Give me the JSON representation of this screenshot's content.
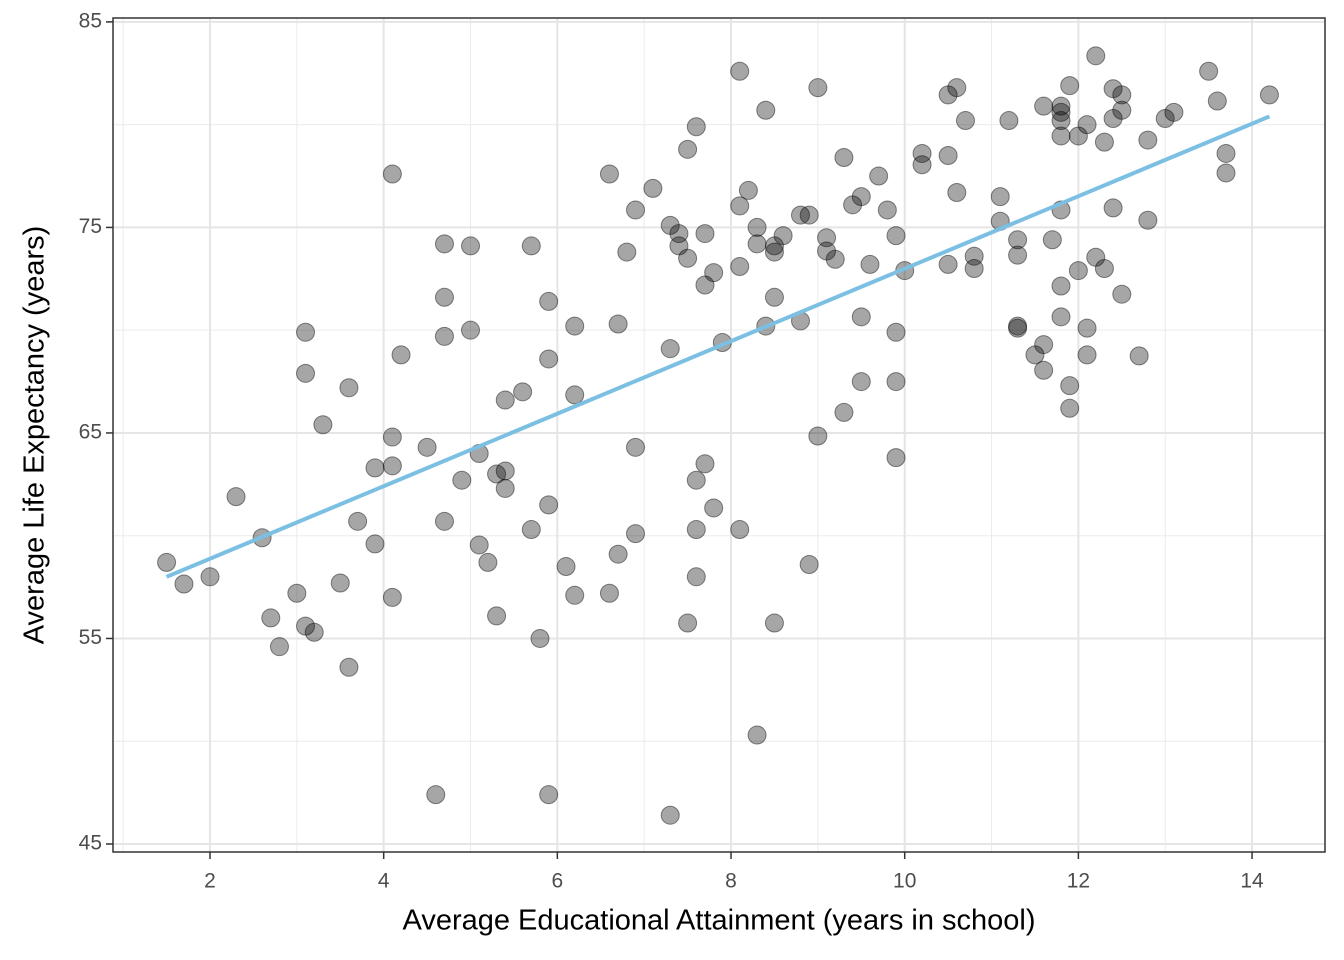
{
  "chart_data": {
    "type": "scatter",
    "x_label": "Average Educational Attainment (years in school)",
    "y_label": "Average Life Expectancy (years)",
    "xlim": [
      0.883,
      14.84
    ],
    "ylim": [
      44.61,
      85.19
    ],
    "xticks": [
      2,
      4,
      6,
      8,
      10,
      12,
      14
    ],
    "yticks": [
      45,
      55,
      65,
      75,
      85
    ],
    "x_minor_grid": [
      1,
      3,
      5,
      7,
      9,
      11,
      13
    ],
    "y_minor_grid": [
      50,
      60,
      70,
      80
    ],
    "grid": true,
    "points": {
      "color": "#000000",
      "opacity": 0.35,
      "x": [
        1.5,
        1.7,
        2.0,
        2.3,
        2.6,
        2.7,
        2.8,
        3.0,
        3.1,
        3.1,
        3.1,
        3.2,
        3.3,
        3.5,
        3.6,
        3.6,
        3.7,
        3.9,
        3.9,
        4.1,
        4.1,
        4.1,
        4.1,
        4.2,
        4.5,
        4.6,
        4.7,
        4.7,
        4.7,
        4.7,
        4.9,
        5.0,
        5.0,
        5.1,
        5.1,
        5.2,
        5.3,
        5.3,
        5.4,
        5.4,
        5.4,
        5.6,
        5.7,
        5.7,
        5.8,
        5.9,
        5.9,
        5.9,
        5.9,
        6.1,
        6.2,
        6.2,
        6.2,
        6.6,
        6.6,
        6.7,
        6.7,
        6.8,
        6.9,
        6.9,
        6.9,
        7.1,
        7.3,
        7.3,
        7.3,
        7.4,
        7.4,
        7.5,
        7.5,
        7.5,
        7.6,
        7.6,
        7.6,
        7.6,
        7.7,
        7.7,
        7.7,
        7.8,
        7.8,
        7.9,
        8.1,
        8.1,
        8.1,
        8.1,
        8.2,
        8.3,
        8.3,
        8.3,
        8.4,
        8.4,
        8.5,
        8.5,
        8.5,
        8.5,
        8.6,
        8.8,
        8.8,
        8.9,
        8.9,
        9.0,
        9.0,
        9.1,
        9.1,
        9.2,
        9.3,
        9.3,
        9.4,
        9.5,
        9.5,
        9.5,
        9.6,
        9.7,
        9.8,
        9.9,
        9.9,
        9.9,
        9.9,
        10.0,
        10.2,
        10.2,
        10.5,
        10.5,
        10.5,
        10.6,
        10.6,
        10.7,
        10.8,
        10.8,
        11.2,
        11.1,
        11.1,
        11.3,
        11.3,
        11.3,
        11.3,
        11.5,
        11.6,
        11.6,
        11.6,
        11.7,
        11.8,
        11.8,
        11.8,
        11.8,
        11.8,
        11.8,
        11.8,
        11.9,
        11.9,
        11.9,
        12.0,
        12.0,
        12.1,
        12.1,
        12.1,
        12.2,
        12.2,
        12.3,
        12.3,
        12.4,
        12.4,
        12.4,
        12.5,
        12.5,
        12.5,
        12.7,
        12.8,
        12.8,
        13.0,
        13.1,
        13.5,
        13.6,
        13.7,
        13.7,
        14.2
      ],
      "y": [
        58.7,
        57.65,
        58.0,
        61.9,
        59.9,
        56.0,
        54.6,
        57.2,
        69.9,
        67.9,
        55.6,
        55.3,
        65.4,
        57.7,
        67.2,
        53.6,
        60.7,
        63.3,
        59.6,
        77.6,
        64.8,
        63.4,
        57.0,
        68.8,
        64.3,
        47.4,
        74.2,
        71.6,
        69.7,
        60.7,
        62.7,
        74.1,
        70.0,
        64.0,
        59.55,
        58.7,
        63.0,
        56.1,
        66.6,
        63.15,
        62.3,
        67.0,
        74.1,
        60.3,
        55.0,
        71.4,
        68.6,
        61.5,
        47.4,
        58.5,
        70.2,
        66.85,
        57.1,
        77.6,
        57.2,
        70.3,
        59.1,
        73.8,
        75.85,
        64.3,
        60.1,
        76.9,
        75.1,
        69.1,
        46.4,
        74.7,
        74.1,
        78.8,
        73.5,
        55.75,
        79.9,
        62.7,
        60.3,
        58.0,
        74.7,
        72.2,
        63.5,
        72.8,
        61.35,
        69.4,
        82.6,
        76.05,
        73.1,
        60.3,
        76.8,
        75.0,
        74.2,
        50.3,
        80.7,
        70.2,
        74.1,
        73.8,
        71.6,
        55.75,
        74.6,
        75.6,
        70.45,
        75.6,
        58.6,
        81.8,
        64.85,
        74.5,
        73.85,
        73.45,
        78.4,
        66.0,
        76.1,
        76.5,
        70.65,
        67.5,
        73.2,
        77.5,
        75.85,
        74.6,
        69.9,
        67.5,
        63.8,
        72.9,
        78.6,
        78.05,
        81.45,
        78.5,
        73.2,
        81.8,
        76.7,
        80.2,
        73.6,
        73.0,
        80.2,
        76.5,
        75.3,
        74.4,
        73.65,
        70.1,
        70.2,
        68.8,
        80.9,
        69.3,
        68.05,
        74.4,
        80.9,
        80.6,
        80.2,
        79.45,
        75.85,
        72.15,
        70.65,
        81.9,
        67.3,
        66.2,
        79.45,
        72.9,
        80.0,
        70.1,
        68.8,
        83.35,
        73.55,
        79.15,
        73.0,
        81.75,
        80.3,
        75.95,
        81.45,
        80.7,
        71.75,
        68.75,
        79.25,
        75.35,
        80.3,
        80.6,
        82.6,
        81.15,
        78.6,
        77.65,
        81.45
      ]
    },
    "trend": {
      "color": "#7bc0e3",
      "x": [
        1.5,
        14.2
      ],
      "y": [
        58.0,
        80.4
      ]
    }
  }
}
